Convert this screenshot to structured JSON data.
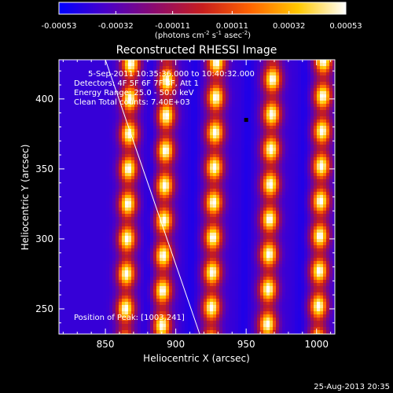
{
  "chart_data": {
    "type": "heatmap",
    "title": "Reconstructed RHESSI Image",
    "xlabel": "Heliocentric X (arcsec)",
    "ylabel": "Heliocentric Y (arcsec)",
    "xlim": [
      817,
      1013
    ],
    "ylim": [
      232,
      428
    ],
    "x_ticks": [
      850,
      900,
      950,
      1000
    ],
    "y_ticks": [
      250,
      300,
      350,
      400
    ],
    "colorbar": {
      "label_text": "(photons cm",
      "label_sup1": "-2",
      "label_mid": " s",
      "label_sup2": "-1",
      "label_end": " asec",
      "label_sup3": "-2",
      "label_close": ")",
      "range": [
        -0.00053,
        0.00053
      ],
      "tick_values": [
        -0.00053,
        -0.00032,
        -0.00011,
        0.00011,
        0.00032,
        0.00053
      ],
      "tick_labels": [
        "-0.00053",
        "-0.00032",
        "-0.00011",
        "0.00011",
        "0.00032",
        "0.00053"
      ],
      "colors": [
        "#0000ff",
        "#4b00c8",
        "#8c0a6e",
        "#c81e1e",
        "#ff6400",
        "#ffc800",
        "#ffffff"
      ]
    },
    "annotations": [
      "5-Sep-2011 10:35:36.000 to 10:40:32.000",
      "Detectors: 4F 5F 6F 7F 8F, Att 1",
      "Energy Range: 25.0 - 50.0 keV",
      "Clean     Total counts: 7.40E+03",
      "Position of Peak: [1003,241]"
    ],
    "bright_bands_x": [
      866,
      892,
      927,
      967,
      1003
    ],
    "dark_band_x": [
      882,
      912,
      950,
      990
    ],
    "band_slope_arcsec_per_arcsec": -0.02,
    "limb_line": [
      [
        850,
        428
      ],
      [
        917,
        232
      ]
    ],
    "marker": [
      950,
      385
    ],
    "timestamp": "25-Aug-2013 20:35"
  }
}
